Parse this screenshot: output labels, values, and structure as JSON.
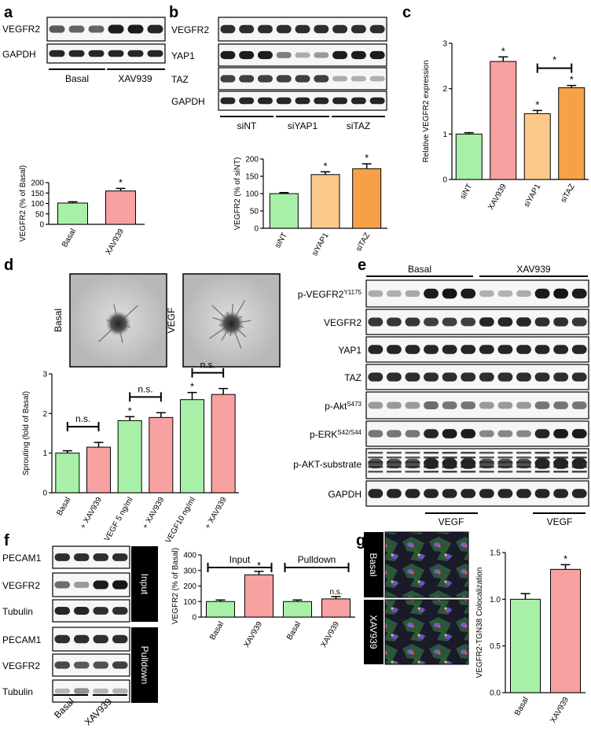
{
  "panels": {
    "a": {
      "letter": "a",
      "blot_labels": [
        "VEGFR2",
        "GAPDH"
      ],
      "groups": [
        "Basal",
        "XAV939"
      ]
    },
    "b": {
      "letter": "b",
      "blot_labels": [
        "VEGFR2",
        "YAP1",
        "TAZ",
        "GAPDH"
      ],
      "groups": [
        "siNT",
        "siYAP1",
        "siTAZ"
      ]
    },
    "c": {
      "letter": "c"
    },
    "d": {
      "letter": "d",
      "image_labels": [
        "Basal",
        "VEGF"
      ]
    },
    "e": {
      "letter": "e",
      "groups": [
        "Basal",
        "XAV939"
      ],
      "blot_labels": [
        "p-VEGFR2",
        "VEGFR2",
        "YAP1",
        "TAZ",
        "p-Akt",
        "p-ERK",
        "p-AKT-substrate",
        "GAPDH"
      ],
      "superscripts": {
        "p-VEGFR2": "Y1175",
        "p-Akt": "S473",
        "p-ERK": "S42/S44"
      },
      "treatment": [
        "VEGF",
        "VEGF"
      ]
    },
    "f": {
      "letter": "f",
      "blot_labels": [
        "PECAM1",
        "VEGFR2",
        "Tubulin",
        "PECAM1",
        "VEGFR2",
        "Tubulin"
      ],
      "blocks": [
        "Input",
        "Pulldown"
      ],
      "groups": [
        "Basal",
        "XAV939"
      ]
    },
    "g": {
      "letter": "g",
      "stain": [
        "VEGFR2",
        "TGN38",
        "DAPI"
      ],
      "stain_colors": [
        "#22dd22",
        "#ff2222",
        "#3377ff"
      ],
      "image_labels": [
        "Basal",
        "XAV939"
      ]
    }
  },
  "colors": {
    "green": "#a8f0a8",
    "pink": "#f7a1a1",
    "peach": "#fbc98a",
    "orange": "#f6a148"
  },
  "chart_data": [
    {
      "id": "a",
      "type": "bar",
      "categories": [
        "Basal",
        "XAV939"
      ],
      "values": [
        102,
        160
      ],
      "errors": [
        6,
        12
      ],
      "colors": [
        "green",
        "pink"
      ],
      "ylabel": "VEGFR2 (% of Basal)",
      "ylim": [
        0,
        200
      ],
      "yticks": [
        0,
        50,
        100,
        150,
        200
      ],
      "annotations": [
        {
          "bar": 1,
          "text": "*"
        }
      ]
    },
    {
      "id": "b",
      "type": "bar",
      "categories": [
        "siNT",
        "siYAP1",
        "siTAZ"
      ],
      "values": [
        100,
        155,
        172
      ],
      "errors": [
        3,
        8,
        14
      ],
      "colors": [
        "green",
        "peach",
        "orange"
      ],
      "ylabel": "VEGFR2 (% of siNT)",
      "ylim": [
        0,
        200
      ],
      "yticks": [
        0,
        50,
        100,
        150,
        200
      ],
      "annotations": [
        {
          "bar": 1,
          "text": "*"
        },
        {
          "bar": 2,
          "text": "*"
        }
      ]
    },
    {
      "id": "c",
      "type": "bar",
      "categories": [
        "siNT",
        "XAV939",
        "siYAP1",
        "siTAZ"
      ],
      "values": [
        1.0,
        2.6,
        1.45,
        2.02
      ],
      "errors": [
        0.03,
        0.1,
        0.07,
        0.05
      ],
      "colors": [
        "green",
        "pink",
        "peach",
        "orange"
      ],
      "ylabel": "Relative VEGFR2 expression",
      "ylim": [
        0,
        3
      ],
      "yticks": [
        0,
        1,
        2,
        3
      ],
      "annotations": [
        {
          "bar": 1,
          "text": "*"
        },
        {
          "bar": 2,
          "text": "*"
        },
        {
          "bar": 3,
          "text": "*"
        }
      ],
      "brackets": [
        {
          "from": 2,
          "to": 3,
          "text": "*"
        }
      ]
    },
    {
      "id": "d",
      "type": "bar",
      "categories": [
        "Basal",
        "+ XAV939",
        "VEGF 5 ng/ml",
        "+ XAV939",
        "VEGF10 ng/ml",
        "+ XAV939"
      ],
      "values": [
        1.0,
        1.15,
        1.82,
        1.9,
        2.35,
        2.48
      ],
      "errors": [
        0.06,
        0.12,
        0.1,
        0.12,
        0.18,
        0.15
      ],
      "colors": [
        "green",
        "pink",
        "green",
        "pink",
        "green",
        "pink"
      ],
      "ylabel": "Sprouting (fold of Basal)",
      "ylim": [
        0,
        3
      ],
      "yticks": [
        0,
        1,
        2,
        3
      ],
      "annotations": [
        {
          "bar": 2,
          "text": "*"
        },
        {
          "bar": 4,
          "text": "*"
        }
      ],
      "brackets": [
        {
          "from": 0,
          "to": 1,
          "text": "n.s."
        },
        {
          "from": 2,
          "to": 3,
          "text": "n.s."
        },
        {
          "from": 4,
          "to": 5,
          "text": "n.s."
        }
      ]
    },
    {
      "id": "f",
      "type": "bar",
      "categories": [
        "Basal",
        "XAV939",
        "Basal",
        "XAV939"
      ],
      "values": [
        100,
        272,
        100,
        117
      ],
      "errors": [
        10,
        22,
        10,
        15
      ],
      "colors": [
        "green",
        "pink",
        "green",
        "pink"
      ],
      "ylabel": "VEGFR2 (% of Basal)",
      "ylim": [
        0,
        400
      ],
      "yticks": [
        0,
        100,
        200,
        300,
        400
      ],
      "annotations": [
        {
          "bar": 1,
          "text": "*"
        },
        {
          "bar": 3,
          "text": "n.s."
        }
      ],
      "brackets": [
        {
          "from": 0,
          "to": 1,
          "text": "Input"
        },
        {
          "from": 2,
          "to": 3,
          "text": "Pulldown"
        }
      ]
    },
    {
      "id": "g",
      "type": "bar",
      "categories": [
        "Basal",
        "XAV939"
      ],
      "values": [
        1.0,
        1.32
      ],
      "errors": [
        0.06,
        0.05
      ],
      "colors": [
        "green",
        "pink"
      ],
      "ylabel": "VEGFR2-TGN38 Colocalization",
      "ylim": [
        0,
        1.5
      ],
      "yticks": [
        0.0,
        0.5,
        1.0,
        1.5
      ],
      "annotations": [
        {
          "bar": 1,
          "text": "*"
        }
      ]
    }
  ]
}
